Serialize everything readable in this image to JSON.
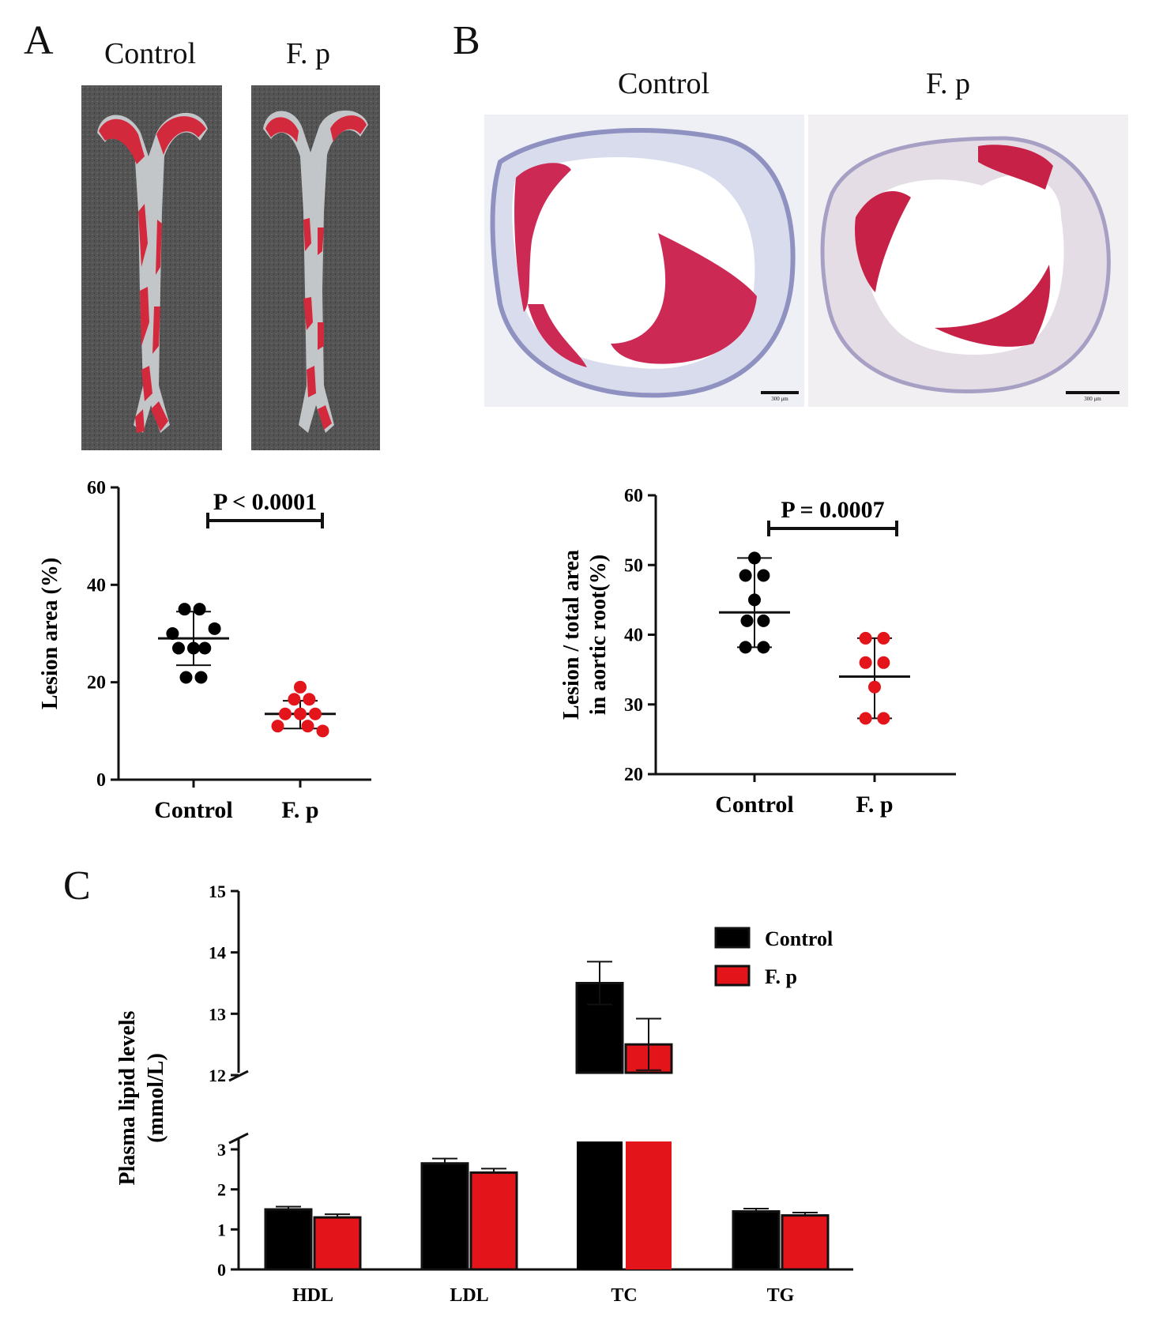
{
  "panels": {
    "A": {
      "letter": "A",
      "image_labels": [
        "Control",
        "F. p"
      ],
      "image_desc": "Whole-mount aorta stained red, Control vs F. p"
    },
    "B": {
      "letter": "B",
      "image_labels": [
        "Control",
        "F. p"
      ],
      "image_desc": "Aortic root cross-sections, Control vs F. p",
      "scale_text": "300 μm"
    },
    "C": {
      "letter": "C"
    }
  },
  "colors": {
    "control": "#000000",
    "fp": "#e3151b",
    "aorta_bg": "#505050",
    "lesion": "#d22a3c"
  },
  "chart_data": [
    {
      "id": "A-lesion-area",
      "type": "scatter",
      "categories": [
        "Control",
        "F. p"
      ],
      "ylabel": "Lesion area (%)",
      "ylim": [
        0,
        60
      ],
      "yticks": [
        0,
        20,
        40,
        60
      ],
      "significance": "P < 0.0001",
      "series": [
        {
          "name": "Control",
          "mean": 29,
          "sd_low": 23.5,
          "sd_high": 34.5,
          "points": [
            [
              -0.28,
              30
            ],
            [
              -0.12,
              35
            ],
            [
              0.08,
              35
            ],
            [
              0.28,
              31
            ],
            [
              -0.2,
              27
            ],
            [
              0.0,
              27
            ],
            [
              0.15,
              27
            ],
            [
              -0.1,
              21
            ],
            [
              0.1,
              21
            ]
          ]
        },
        {
          "name": "F. p",
          "mean": 13.5,
          "sd_low": 10.5,
          "sd_high": 16.2,
          "points": [
            [
              0.0,
              19
            ],
            [
              -0.08,
              16.5
            ],
            [
              0.12,
              16.5
            ],
            [
              -0.2,
              13.5
            ],
            [
              0.0,
              13.5
            ],
            [
              0.2,
              13.5
            ],
            [
              -0.3,
              11
            ],
            [
              0.1,
              11
            ],
            [
              0.3,
              10
            ]
          ]
        }
      ]
    },
    {
      "id": "B-lesion-root",
      "type": "scatter",
      "categories": [
        "Control",
        "F. p"
      ],
      "ylabel": "Lesion / total area in aortic root(%)",
      "ylabel_lines": [
        "Lesion / total area",
        "in aortic root(%)"
      ],
      "ylim": [
        20,
        60
      ],
      "yticks": [
        20,
        30,
        40,
        50,
        60
      ],
      "significance": "P = 0.0007",
      "series": [
        {
          "name": "Control",
          "mean": 43.2,
          "sd_low": 38.2,
          "sd_high": 51,
          "points": [
            [
              0.0,
              51
            ],
            [
              -0.12,
              48.5
            ],
            [
              0.12,
              48.5
            ],
            [
              0.0,
              45
            ],
            [
              -0.1,
              42
            ],
            [
              0.12,
              42
            ],
            [
              -0.12,
              38.2
            ],
            [
              0.12,
              38.2
            ]
          ]
        },
        {
          "name": "F. p",
          "mean": 34,
          "sd_low": 28,
          "sd_high": 39.5,
          "points": [
            [
              -0.12,
              39.5
            ],
            [
              0.12,
              39.5
            ],
            [
              -0.12,
              36
            ],
            [
              0.12,
              36
            ],
            [
              0.0,
              32.5
            ],
            [
              -0.12,
              28
            ],
            [
              0.12,
              28
            ]
          ]
        }
      ]
    },
    {
      "id": "C-plasma-lipids",
      "type": "bar",
      "categories": [
        "HDL",
        "LDL",
        "TC",
        "TG"
      ],
      "ylabel": "Plasma lipid levels (mmol/L)",
      "ylabel_lines": [
        "Plasma lipid levels",
        "(mmol/L)"
      ],
      "axis_break": {
        "lower": [
          0,
          3
        ],
        "upper": [
          12,
          15
        ]
      },
      "yticks_lower": [
        0,
        1,
        2,
        3
      ],
      "yticks_upper": [
        12,
        13,
        14,
        15
      ],
      "legend_position": "top-right",
      "series": [
        {
          "name": "Control",
          "values": [
            1.5,
            2.65,
            13.5,
            1.45
          ],
          "errors": [
            0.07,
            0.12,
            0.35,
            0.07
          ]
        },
        {
          "name": "F. p",
          "values": [
            1.3,
            2.42,
            12.5,
            1.35
          ],
          "errors": [
            0.08,
            0.1,
            0.42,
            0.07
          ]
        }
      ]
    }
  ]
}
